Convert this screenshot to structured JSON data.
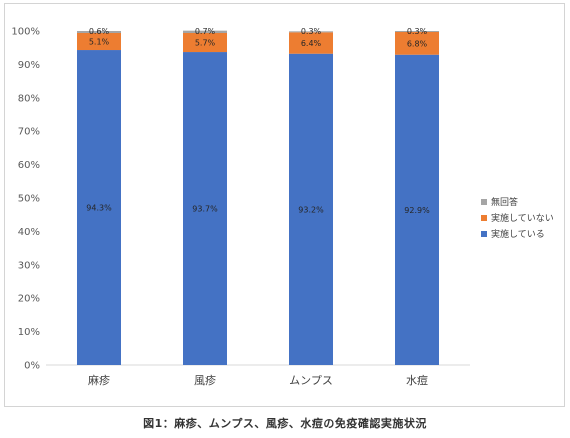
{
  "caption": "図1：麻疹、ムンプス、風疹、水痘の免疫確認実施状況",
  "chart_data": {
    "type": "bar",
    "stacked": true,
    "normalized": true,
    "categories": [
      "麻疹",
      "風疹",
      "ムンプス",
      "水痘"
    ],
    "series": [
      {
        "name": "実施している",
        "color": "#4472C4",
        "values": [
          94.3,
          93.7,
          93.2,
          92.9
        ],
        "labels": [
          "94.3%",
          "93.7%",
          "93.2%",
          "92.9%"
        ]
      },
      {
        "name": "実施していない",
        "color": "#ED7D31",
        "values": [
          5.1,
          5.7,
          6.4,
          6.8
        ],
        "labels": [
          "5.1%",
          "5.7%",
          "6.4%",
          "6.8%"
        ]
      },
      {
        "name": "無回答",
        "color": "#A5A5A5",
        "values": [
          0.6,
          0.7,
          0.3,
          0.3
        ],
        "labels": [
          "0.6%",
          "0.7%",
          "0.3%",
          "0.3%"
        ]
      }
    ],
    "legend_order": [
      "無回答",
      "実施していない",
      "実施している"
    ],
    "legend_position": "right",
    "ylim": [
      0,
      100
    ],
    "yticks": [
      "0%",
      "10%",
      "20%",
      "30%",
      "40%",
      "50%",
      "60%",
      "70%",
      "80%",
      "90%",
      "100%"
    ],
    "grid": false
  }
}
